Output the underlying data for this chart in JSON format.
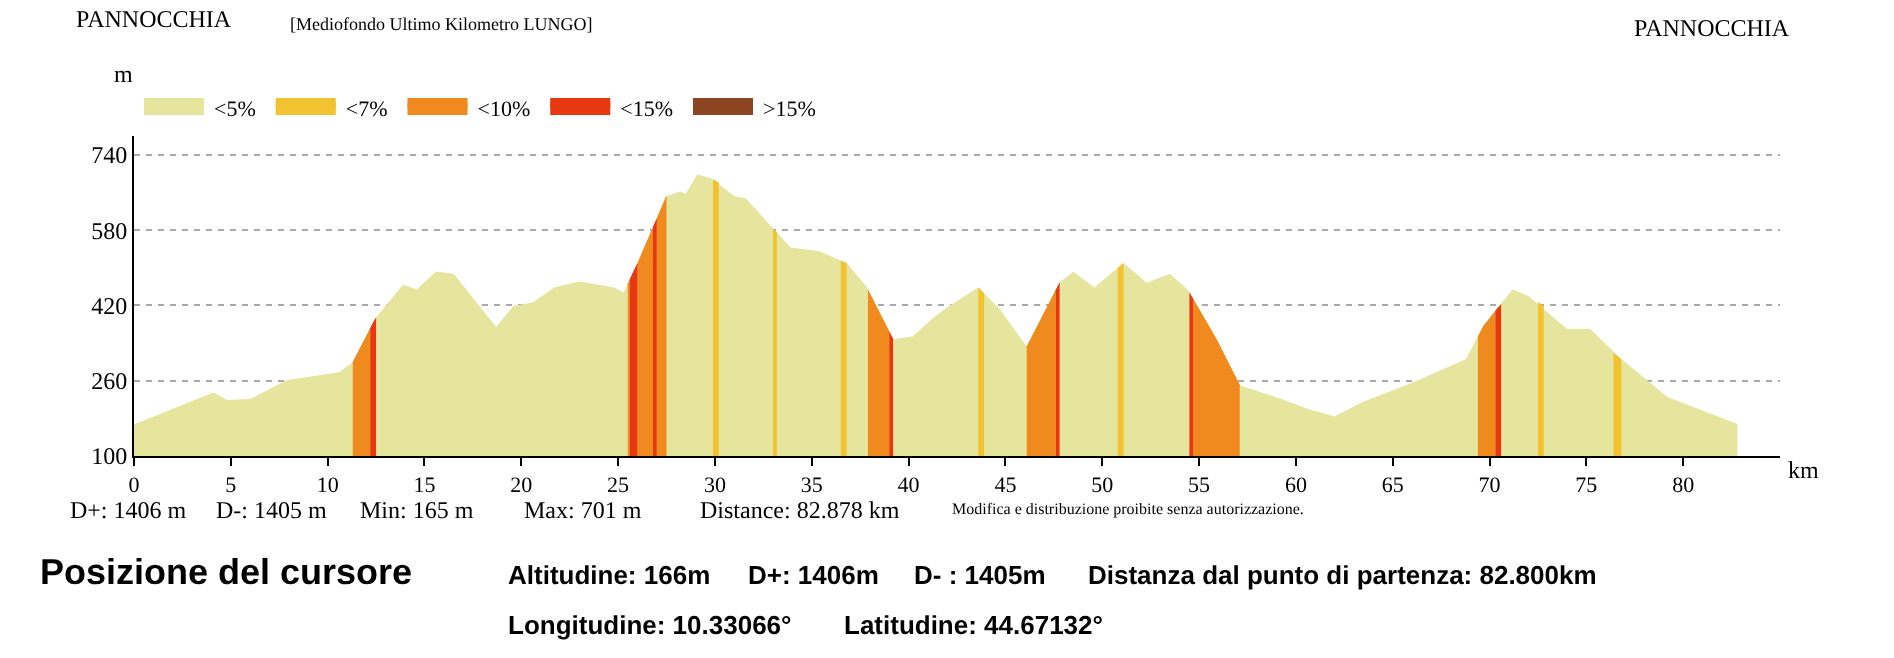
{
  "chart_data": {
    "type": "area",
    "title": "PANNOCCHIA",
    "subtitle": "[Mediofondo Ultimo Kilometro LUNGO]",
    "ylabel": "m",
    "xlabel": "km",
    "xlim": [
      0,
      85
    ],
    "xticks": [
      0,
      5,
      10,
      15,
      20,
      25,
      30,
      35,
      40,
      45,
      50,
      55,
      60,
      65,
      70,
      75,
      80
    ],
    "ylim": [
      100,
      780
    ],
    "yticks": [
      100,
      260,
      420,
      580,
      740
    ],
    "grid": "y",
    "legend": "top left",
    "series": [
      {
        "name": "<5%",
        "color": "#e5e59d",
        "x": [
          0,
          4.1,
          4.8,
          6.0,
          7.9,
          10.6,
          11.3,
          12.5,
          13.9,
          14.6,
          15.6,
          16.5,
          18.7,
          19.6,
          20.6,
          21.7,
          23.0,
          24.8,
          25.3,
          26.1,
          27.5,
          28.2,
          28.5,
          29.1,
          29.8,
          31.0,
          31.6,
          33.9,
          35.4,
          36.8,
          37.8,
          39.2,
          40.2,
          41.3,
          42.0,
          43.6,
          44.7,
          46.1,
          47.8,
          48.5,
          49.6,
          51.1,
          52.3,
          53.5,
          54.4,
          55.9,
          57.1,
          59.2,
          60.6,
          62.0,
          63.4,
          66.1,
          68.8,
          69.7,
          71.2,
          72.0,
          74.0,
          75.2,
          76.8,
          79.2,
          82.8
        ],
        "values": [
          166,
          234,
          218,
          220,
          260,
          277,
          298,
          393,
          463,
          453,
          491,
          486,
          373,
          418,
          425,
          457,
          470,
          457,
          446,
          517,
          651,
          661,
          656,
          697,
          689,
          651,
          646,
          542,
          534,
          509,
          460,
          347,
          353,
          393,
          415,
          457,
          411,
          331,
          467,
          491,
          457,
          509,
          467,
          486,
          453,
          347,
          249,
          221,
          199,
          183,
          213,
          256,
          305,
          376,
          453,
          439,
          369,
          369,
          305,
          224,
          167
        ]
      },
      {
        "name": "<7%",
        "color": "#f2c230",
        "x": [
          29.9,
          30.2,
          null,
          33.0,
          33.2,
          null,
          36.5,
          36.8,
          null,
          43.6,
          43.9,
          null,
          50.8,
          51.1,
          null,
          72.5,
          72.8,
          null,
          76.4,
          76.8
        ],
        "values": [
          687,
          680,
          null,
          583,
          574,
          null,
          514,
          509,
          null,
          457,
          445,
          null,
          499,
          509,
          null,
          426,
          418,
          null,
          318,
          305
        ]
      },
      {
        "name": "<10%",
        "color": "#f08a1e",
        "x": [
          11.3,
          12.2,
          null,
          25.5,
          25.6,
          null,
          26.0,
          26.1,
          26.4,
          26.8,
          null,
          27.0,
          27.25,
          27.5,
          null,
          37.9,
          39.0,
          null,
          46.1,
          47.6,
          null,
          54.7,
          55.9,
          57.1,
          null,
          69.4,
          69.7,
          70.3
        ],
        "values": [
          298,
          370,
          null,
          464,
          473,
          null,
          508,
          517,
          546,
          584,
          null,
          603,
          627,
          651,
          null,
          452,
          363,
          null,
          331,
          451,
          null,
          432,
          347,
          249,
          null,
          352,
          376,
          407
        ]
      },
      {
        "name": "<15%",
        "color": "#e8380f",
        "x": [
          12.2,
          12.35,
          12.5,
          null,
          25.6,
          25.8,
          26.0,
          null,
          26.8,
          26.9,
          27.0,
          null,
          39.0,
          39.1,
          39.2,
          null,
          47.6,
          47.7,
          47.8,
          null,
          54.5,
          54.6,
          54.7,
          null,
          70.3,
          70.45,
          70.6
        ],
        "values": [
          370,
          382,
          393,
          null,
          473,
          491,
          508,
          null,
          584,
          594,
          603,
          null,
          363,
          355,
          347,
          null,
          451,
          459,
          467,
          null,
          446,
          439,
          432,
          null,
          407,
          415,
          422
        ]
      },
      {
        "name": ">15%",
        "color": "#8b4520"
      }
    ],
    "annotations": [
      "PANNOCCHIA",
      "D+: 1406 m",
      "D-: 1405 m",
      "Min: 165 m",
      "Max: 701 m",
      "Distance: 82.878 km",
      "Modifica e distribuzione proibite senza autorizzazione.",
      "Posizione del cursore",
      "Altitudine: 166m",
      "D+: 1406m",
      "D- : 1405m",
      "Distanza dal punto di partenza: 82.800km",
      "Longitudine: 10.33066°",
      "Latitudine: 44.67132°"
    ]
  }
}
